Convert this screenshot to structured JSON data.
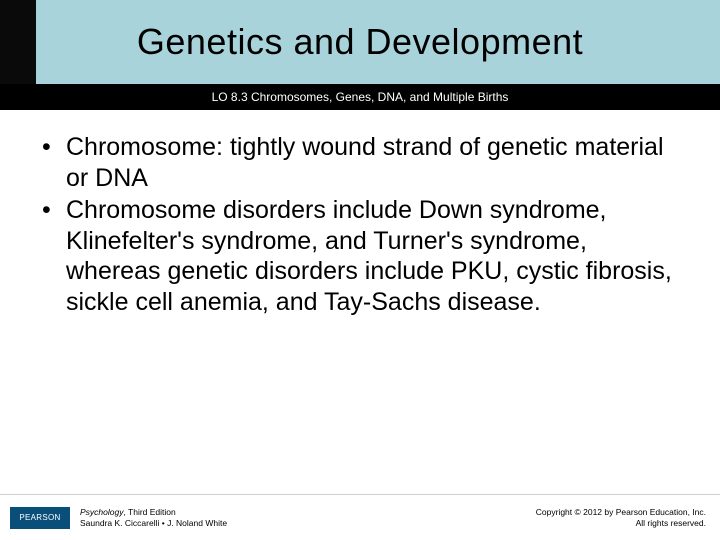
{
  "colors": {
    "title_band_bg": "#a9d3da",
    "title_text": "#000000",
    "subtitle_bar_bg": "#000000",
    "subtitle_text": "#ffffff",
    "body_text": "#000000",
    "footer_border": "#cfcfcf",
    "logo_bg": "#0a4e7a",
    "logo_text": "#ffffff",
    "left_stripe": "#0a0a0a"
  },
  "header": {
    "title": "Genetics and Development",
    "subtitle": "LO 8.3 Chromosomes, Genes, DNA, and Multiple Births"
  },
  "body": {
    "bullets": [
      "Chromosome: tightly wound strand of genetic material or DNA",
      "Chromosome disorders include Down syndrome, Klinefelter's syndrome, and Turner's syndrome, whereas genetic disorders include PKU, cystic fibrosis, sickle cell anemia, and Tay-Sachs disease."
    ]
  },
  "footer": {
    "publisher_logo_text": "PEARSON",
    "book_title": "Psychology",
    "book_edition": ", Third Edition",
    "authors": "Saundra K. Ciccarelli • J. Noland White",
    "copyright_line1": "Copyright © 2012 by Pearson Education, Inc.",
    "copyright_line2": "All rights reserved."
  }
}
